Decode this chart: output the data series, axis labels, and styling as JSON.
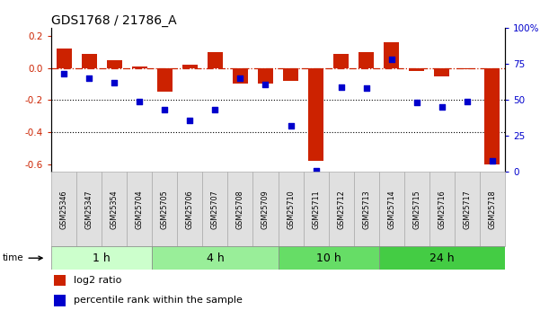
{
  "title": "GDS1768 / 21786_A",
  "samples": [
    "GSM25346",
    "GSM25347",
    "GSM25354",
    "GSM25704",
    "GSM25705",
    "GSM25706",
    "GSM25707",
    "GSM25708",
    "GSM25709",
    "GSM25710",
    "GSM25711",
    "GSM25712",
    "GSM25713",
    "GSM25714",
    "GSM25715",
    "GSM25716",
    "GSM25717",
    "GSM25718"
  ],
  "log2_ratio": [
    0.12,
    0.09,
    0.05,
    0.01,
    -0.15,
    0.02,
    0.1,
    -0.1,
    -0.1,
    -0.08,
    -0.58,
    0.09,
    0.1,
    0.16,
    -0.02,
    -0.05,
    -0.01,
    -0.6
  ],
  "percentile_rank": [
    68,
    65,
    62,
    49,
    43,
    36,
    43,
    65,
    61,
    32,
    1,
    59,
    58,
    78,
    48,
    45,
    49,
    8
  ],
  "groups": [
    {
      "label": "1 h",
      "start": 0,
      "end": 4,
      "color": "#ccffcc"
    },
    {
      "label": "4 h",
      "start": 4,
      "end": 9,
      "color": "#99ee99"
    },
    {
      "label": "10 h",
      "start": 9,
      "end": 13,
      "color": "#66dd66"
    },
    {
      "label": "24 h",
      "start": 13,
      "end": 18,
      "color": "#44cc44"
    }
  ],
  "ylim_left": [
    -0.65,
    0.25
  ],
  "ylim_right": [
    0,
    100
  ],
  "yticks_left": [
    -0.6,
    -0.4,
    -0.2,
    0.0,
    0.2
  ],
  "yticks_right": [
    0,
    25,
    50,
    75,
    100
  ],
  "bar_color": "#cc2200",
  "dot_color": "#0000cc",
  "hline_color": "#cc2200",
  "dotted_line_color": "#000000",
  "background_color": "#ffffff",
  "legend_log2": "log2 ratio",
  "legend_pct": "percentile rank within the sample",
  "time_label": "time"
}
